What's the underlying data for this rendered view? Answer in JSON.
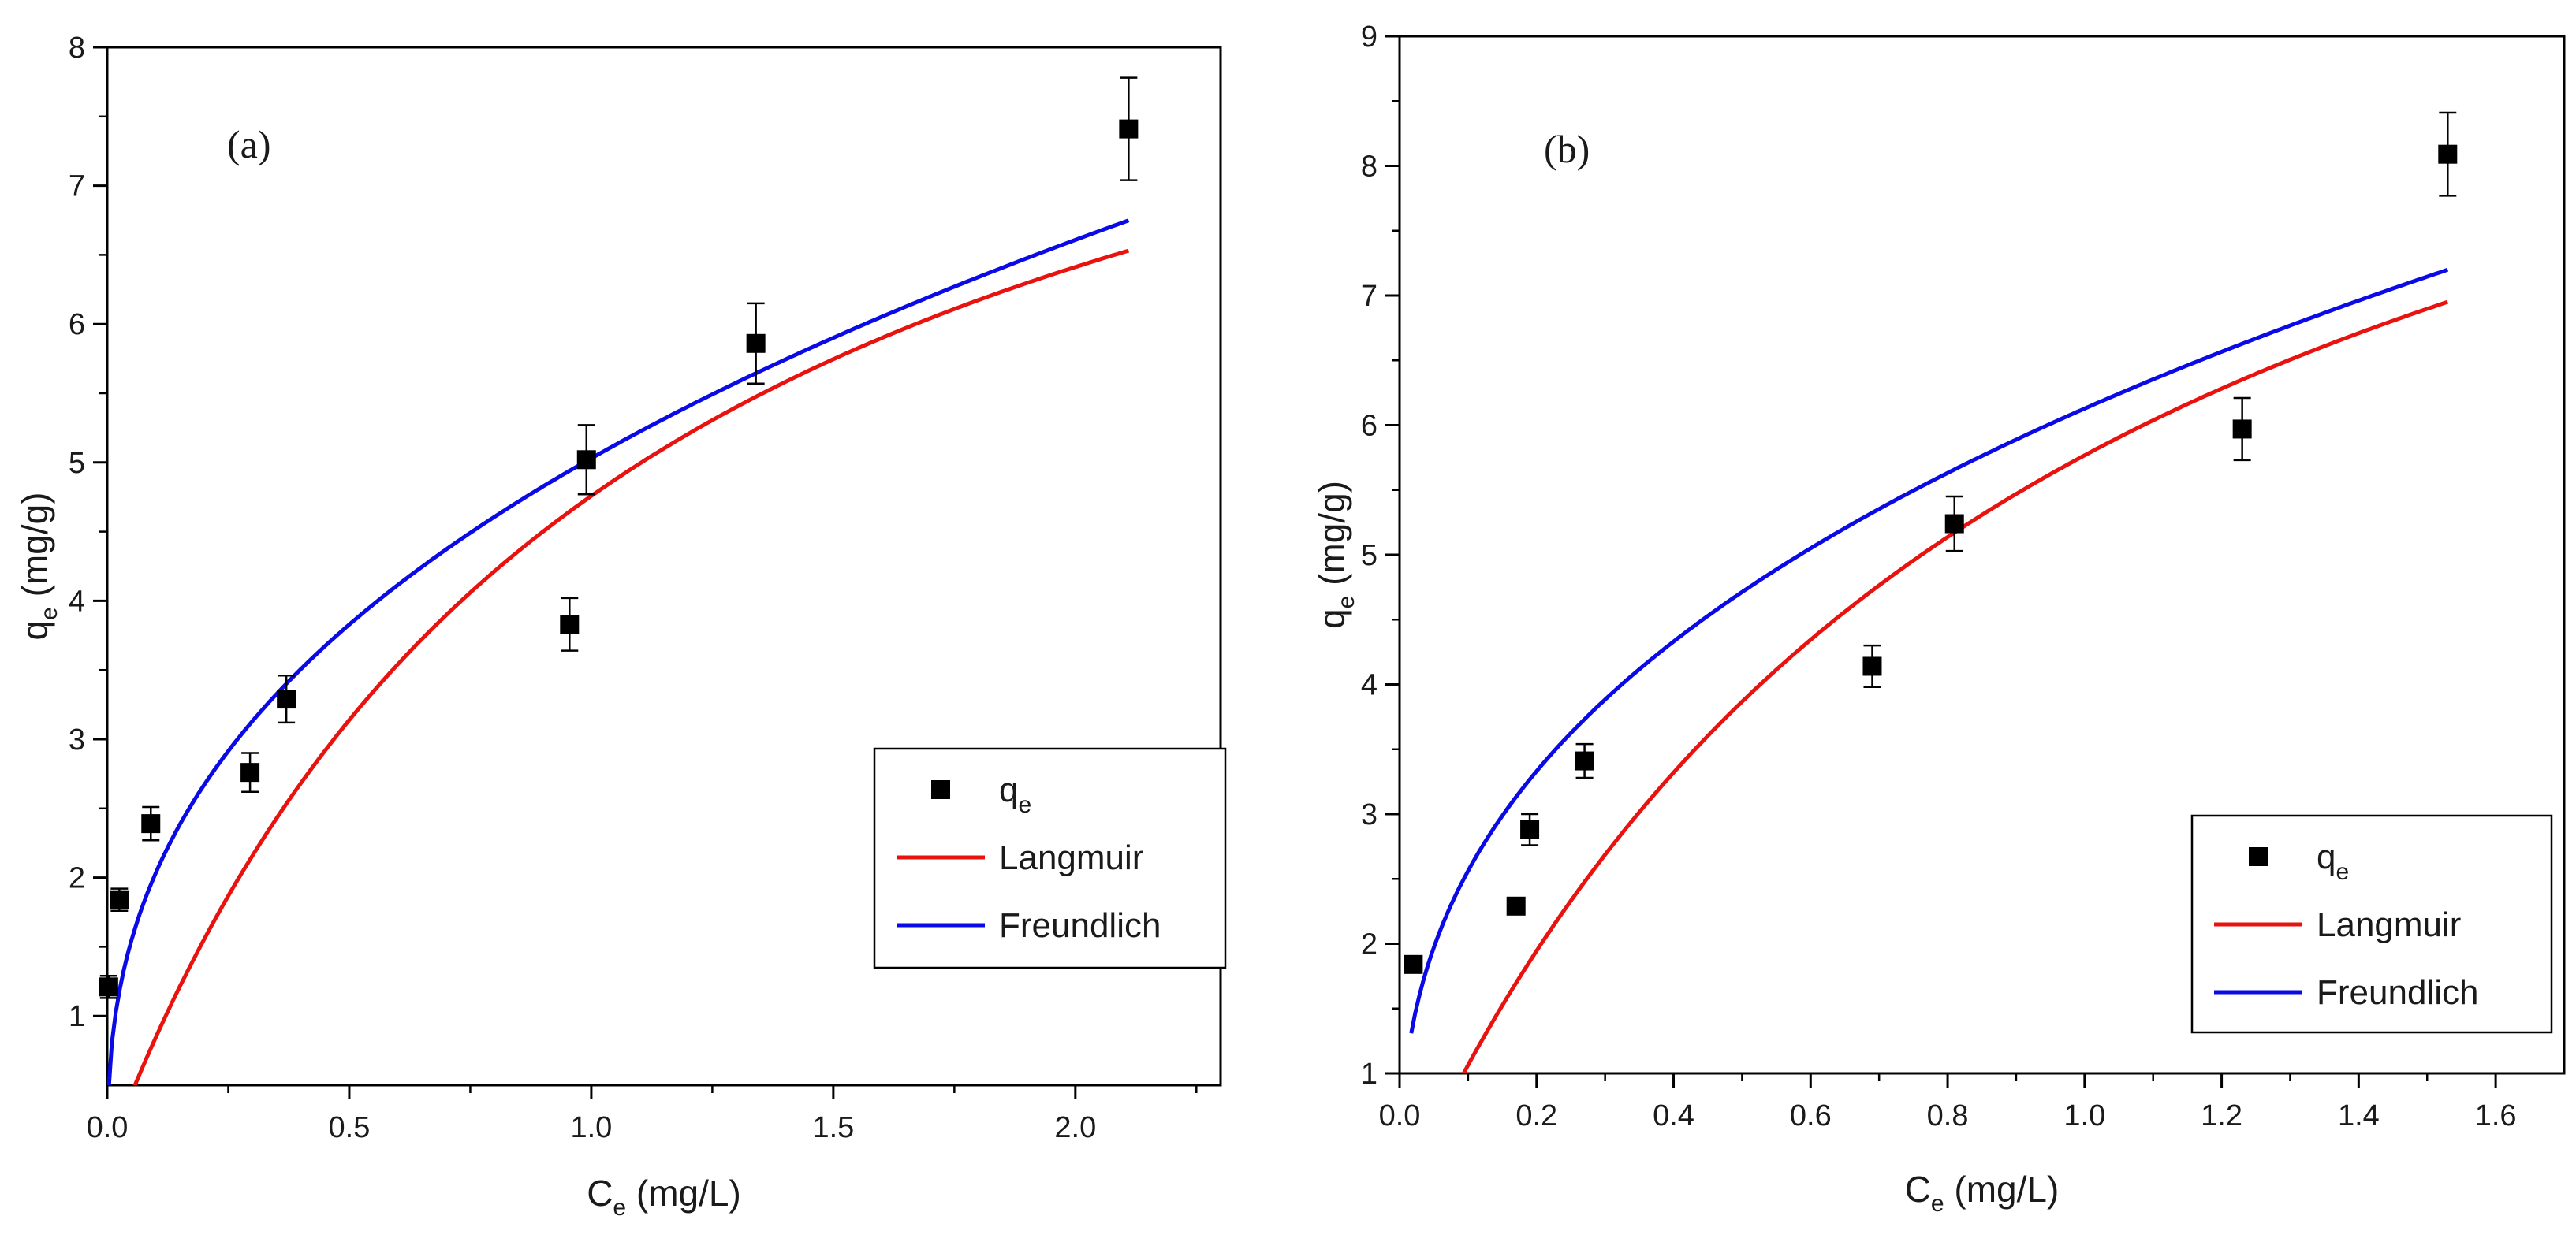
{
  "chart_data": [
    {
      "type": "scatter",
      "panel_label": "(a)",
      "xlabel": {
        "main": "C",
        "sub": "e",
        "rest": " (mg/L)"
      },
      "ylabel": {
        "main": "q",
        "sub": "e",
        "rest": " (mg/g)"
      },
      "xlim": [
        0,
        2.3
      ],
      "ylim": [
        0.5,
        8
      ],
      "x_ticks": [
        0,
        0.5,
        1.0,
        1.5,
        2.0
      ],
      "x_tick_labels": [
        "0.0",
        "0.5",
        "1.0",
        "1.5",
        "2.0"
      ],
      "y_ticks": [
        1,
        2,
        3,
        4,
        5,
        6,
        7,
        8
      ],
      "y_tick_labels": [
        "1",
        "2",
        "3",
        "4",
        "5",
        "6",
        "7",
        "8"
      ],
      "legend_position": "center-right",
      "legend": [
        {
          "label_main": "q",
          "label_sub": "e",
          "kind": "marker",
          "color": "#000000"
        },
        {
          "label_main": "Langmuir",
          "label_sub": "",
          "kind": "line",
          "color": "#e8130f"
        },
        {
          "label_main": "Freundlich",
          "label_sub": "",
          "kind": "line",
          "color": "#0a0ae6"
        }
      ],
      "series": [
        {
          "name": "q_e",
          "kind": "points",
          "color": "#000000",
          "x": [
            0.003,
            0.025,
            0.09,
            0.295,
            0.37,
            0.955,
            0.99,
            1.34,
            2.11
          ],
          "y": [
            1.21,
            1.84,
            2.39,
            2.76,
            3.29,
            3.83,
            5.02,
            5.86,
            7.41
          ],
          "err": [
            0.08,
            0.08,
            0.12,
            0.14,
            0.17,
            0.19,
            0.25,
            0.29,
            0.37
          ]
        },
        {
          "name": "Langmuir",
          "kind": "langmuir",
          "color": "#e8130f",
          "params": {
            "qmax": 9.83,
            "KL": 0.938
          },
          "x_range": [
            0.032,
            2.11
          ]
        },
        {
          "name": "Freundlich",
          "kind": "freundlich",
          "color": "#0a0ae6",
          "params": {
            "KF": 5.03,
            "n": 2.54
          },
          "x_range": [
            0.0015,
            2.11
          ]
        }
      ]
    },
    {
      "type": "scatter",
      "panel_label": "(b)",
      "xlabel": {
        "main": "C",
        "sub": "e",
        "rest": " (mg/L)"
      },
      "ylabel": {
        "main": "q",
        "sub": "e",
        "rest": " (mg/g)"
      },
      "xlim": [
        0,
        1.7
      ],
      "ylim": [
        1,
        9
      ],
      "x_ticks": [
        0,
        0.2,
        0.4,
        0.6,
        0.8,
        1.0,
        1.2,
        1.4,
        1.6
      ],
      "x_tick_labels": [
        "0.0",
        "0.2",
        "0.4",
        "0.6",
        "0.8",
        "1.0",
        "1.2",
        "1.4",
        "1.6"
      ],
      "y_ticks": [
        1,
        2,
        3,
        4,
        5,
        6,
        7,
        8,
        9
      ],
      "y_tick_labels": [
        "1",
        "2",
        "3",
        "4",
        "5",
        "6",
        "7",
        "8",
        "9"
      ],
      "legend_position": "bottom-right",
      "legend": [
        {
          "label_main": "q",
          "label_sub": "e",
          "kind": "marker",
          "color": "#000000"
        },
        {
          "label_main": "Langmuir",
          "label_sub": "",
          "kind": "line",
          "color": "#e8130f"
        },
        {
          "label_main": "Freundlich",
          "label_sub": "",
          "kind": "line",
          "color": "#0a0ae6"
        }
      ],
      "series": [
        {
          "name": "q_e",
          "kind": "points",
          "color": "#000000",
          "x": [
            0.02,
            0.17,
            0.19,
            0.27,
            0.69,
            0.81,
            1.23,
            1.53
          ],
          "y": [
            1.84,
            2.29,
            2.88,
            3.41,
            4.14,
            5.24,
            5.97,
            8.09
          ],
          "err": [
            0.06,
            0.06,
            0.12,
            0.13,
            0.16,
            0.21,
            0.24,
            0.32
          ]
        },
        {
          "name": "Langmuir",
          "kind": "langmuir",
          "color": "#e8130f",
          "params": {
            "qmax": 11.34,
            "KL": 1.035
          },
          "x_range": [
            0.069,
            1.53
          ]
        },
        {
          "name": "Freundlich",
          "kind": "freundlich",
          "color": "#0a0ae6",
          "params": {
            "KF": 6.128,
            "n": 2.64
          },
          "x_range": [
            0.017,
            1.53
          ]
        }
      ]
    }
  ]
}
